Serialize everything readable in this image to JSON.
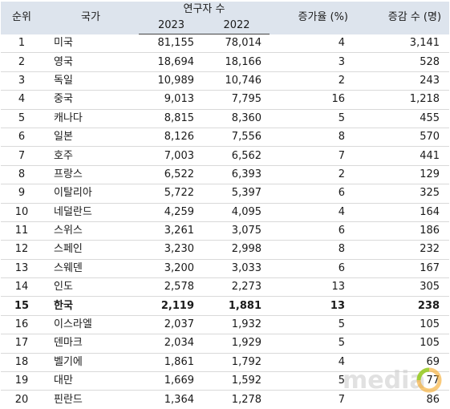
{
  "header": {
    "rank": "순위",
    "country": "국가",
    "researchers": "연구자 수",
    "year_2023": "2023",
    "year_2022": "2022",
    "growth_rate": "증가율 (%)",
    "change": "증감 수 (명)"
  },
  "rows": [
    {
      "rank": "1",
      "country": "미국",
      "y2023": "81,155",
      "y2022": "78,014",
      "rate": "4",
      "change": "3,141"
    },
    {
      "rank": "2",
      "country": "영국",
      "y2023": "18,694",
      "y2022": "18,166",
      "rate": "3",
      "change": "528"
    },
    {
      "rank": "3",
      "country": "독일",
      "y2023": "10,989",
      "y2022": "10,746",
      "rate": "2",
      "change": "243"
    },
    {
      "rank": "4",
      "country": "중국",
      "y2023": "9,013",
      "y2022": "7,795",
      "rate": "16",
      "change": "1,218"
    },
    {
      "rank": "5",
      "country": "캐나다",
      "y2023": "8,815",
      "y2022": "8,360",
      "rate": "5",
      "change": "455"
    },
    {
      "rank": "6",
      "country": "일본",
      "y2023": "8,126",
      "y2022": "7,556",
      "rate": "8",
      "change": "570"
    },
    {
      "rank": "7",
      "country": "호주",
      "y2023": "7,003",
      "y2022": "6,562",
      "rate": "7",
      "change": "441"
    },
    {
      "rank": "8",
      "country": "프랑스",
      "y2023": "6,522",
      "y2022": "6,393",
      "rate": "2",
      "change": "129"
    },
    {
      "rank": "9",
      "country": "이탈리아",
      "y2023": "5,722",
      "y2022": "5,397",
      "rate": "6",
      "change": "325"
    },
    {
      "rank": "10",
      "country": "네덜란드",
      "y2023": "4,259",
      "y2022": "4,095",
      "rate": "4",
      "change": "164"
    },
    {
      "rank": "11",
      "country": "스위스",
      "y2023": "3,261",
      "y2022": "3,075",
      "rate": "6",
      "change": "186"
    },
    {
      "rank": "12",
      "country": "스페인",
      "y2023": "3,230",
      "y2022": "2,998",
      "rate": "8",
      "change": "232"
    },
    {
      "rank": "13",
      "country": "스웨덴",
      "y2023": "3,200",
      "y2022": "3,033",
      "rate": "6",
      "change": "167"
    },
    {
      "rank": "14",
      "country": "인도",
      "y2023": "2,578",
      "y2022": "2,273",
      "rate": "13",
      "change": "305"
    },
    {
      "rank": "15",
      "country": "한국",
      "y2023": "2,119",
      "y2022": "1,881",
      "rate": "13",
      "change": "238",
      "highlight": true
    },
    {
      "rank": "16",
      "country": "이스라엘",
      "y2023": "2,037",
      "y2022": "1,932",
      "rate": "5",
      "change": "105"
    },
    {
      "rank": "17",
      "country": "덴마크",
      "y2023": "2,034",
      "y2022": "1,929",
      "rate": "5",
      "change": "105"
    },
    {
      "rank": "18",
      "country": "벨기에",
      "y2023": "1,861",
      "y2022": "1,792",
      "rate": "4",
      "change": "69"
    },
    {
      "rank": "19",
      "country": "대만",
      "y2023": "1,669",
      "y2022": "1,592",
      "rate": "5",
      "change": "77"
    },
    {
      "rank": "20",
      "country": "핀란드",
      "y2023": "1,364",
      "y2022": "1,278",
      "rate": "7",
      "change": "86"
    }
  ],
  "watermark": {
    "text": "media",
    "colors": {
      "text": "#c8c8c8",
      "ring_a": "#f5a623",
      "ring_b": "#7ed321"
    }
  }
}
